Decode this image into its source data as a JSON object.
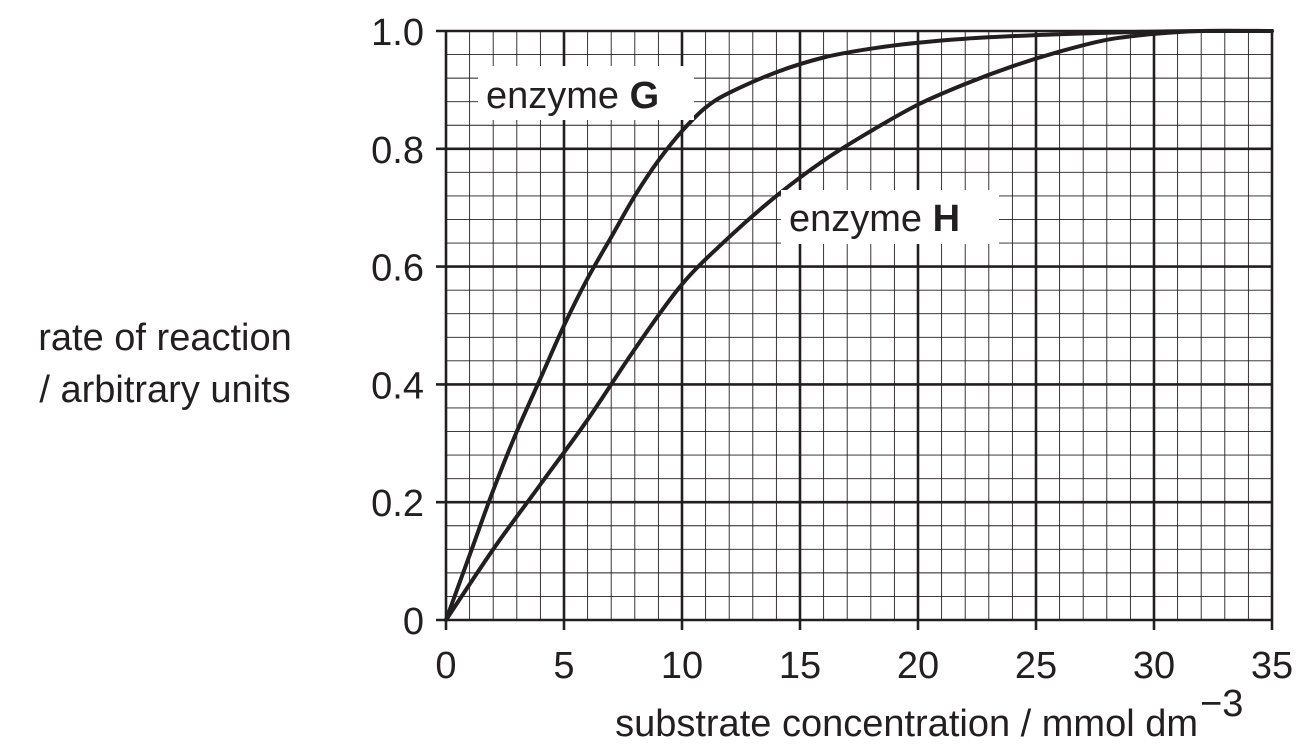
{
  "chart_data": {
    "type": "line",
    "xlabel": "substrate concentration / mmol dm",
    "xlabel_superscript": "−3",
    "ylabel_lines": [
      "rate of reaction",
      "/ arbitrary units"
    ],
    "xlim": [
      0,
      35
    ],
    "ylim": [
      0,
      1.0
    ],
    "x_ticks": [
      0,
      5,
      10,
      15,
      20,
      25,
      30,
      35
    ],
    "x_tick_labels": [
      "0",
      "5",
      "10",
      "15",
      "20",
      "25",
      "30",
      "35"
    ],
    "y_ticks": [
      0,
      0.2,
      0.4,
      0.6,
      0.8,
      1.0
    ],
    "y_tick_labels": [
      "0",
      "0.2",
      "0.4",
      "0.6",
      "0.8",
      "1.0"
    ],
    "grid": true,
    "minor_grid_step_x": 1,
    "minor_grid_step_y": 0.04,
    "line_color": "#231f20",
    "grid_color": "#231f20",
    "series": [
      {
        "name_prefix": "enzyme",
        "name_letter": "G",
        "x": [
          0,
          1,
          2,
          3,
          4,
          5,
          6,
          7,
          8,
          9,
          10,
          11,
          12,
          14,
          16,
          18,
          20,
          22,
          25,
          28,
          30,
          32,
          35
        ],
        "y": [
          0,
          0.11,
          0.22,
          0.32,
          0.41,
          0.5,
          0.58,
          0.65,
          0.72,
          0.78,
          0.83,
          0.87,
          0.895,
          0.93,
          0.955,
          0.97,
          0.98,
          0.987,
          0.993,
          0.997,
          0.999,
          1.0,
          1.0
        ]
      },
      {
        "name_prefix": "enzyme",
        "name_letter": "H",
        "x": [
          0,
          2,
          4,
          6,
          8,
          10,
          12,
          14,
          16,
          18,
          20,
          22,
          24,
          26,
          28,
          30,
          32,
          35
        ],
        "y": [
          0,
          0.12,
          0.23,
          0.34,
          0.46,
          0.57,
          0.65,
          0.72,
          0.78,
          0.83,
          0.875,
          0.91,
          0.94,
          0.965,
          0.985,
          0.995,
          1.0,
          1.0
        ]
      }
    ]
  }
}
